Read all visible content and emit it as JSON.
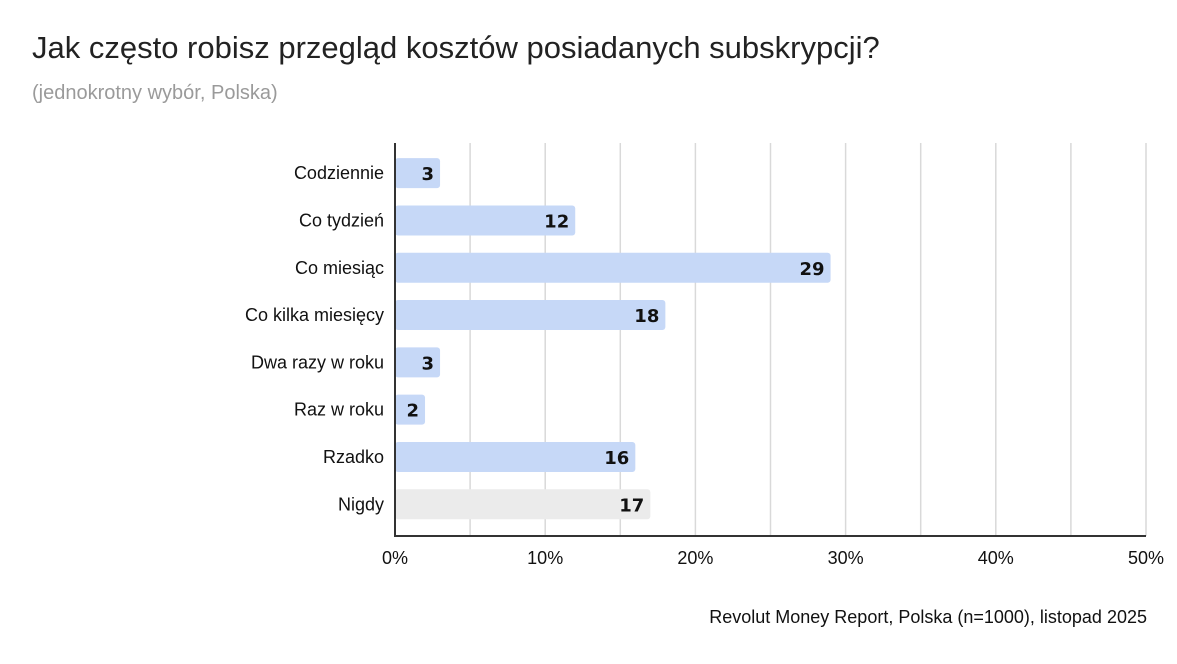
{
  "chart_data": {
    "type": "bar",
    "orientation": "horizontal",
    "title": "Jak często robisz przegląd kosztów posiadanych subskrypcji?",
    "subtitle": "(jednokrotny wybór, Polska)",
    "categories": [
      "Codziennie",
      "Co tydzień",
      "Co miesiąc",
      "Co kilka miesięcy",
      "Dwa razy w roku",
      "Raz w roku",
      "Rzadko",
      "Nigdy"
    ],
    "values": [
      3,
      12,
      29,
      18,
      3,
      2,
      16,
      17
    ],
    "data_labels": [
      "3",
      "12",
      "29",
      "18",
      "3",
      "2",
      "16",
      "17"
    ],
    "bar_colors": [
      "#c6d8f7",
      "#c6d8f7",
      "#c6d8f7",
      "#c6d8f7",
      "#c6d8f7",
      "#c6d8f7",
      "#c6d8f7",
      "#ebebeb"
    ],
    "xlim": [
      0,
      50
    ],
    "x_ticks": [
      "0%",
      "10%",
      "20%",
      "30%",
      "40%",
      "50%"
    ],
    "x_tick_values": [
      0,
      10,
      20,
      30,
      40,
      50
    ],
    "grid": true,
    "grid_step": 5,
    "xlabel": "",
    "ylabel": "",
    "source": "Revolut Money Report, Polska (n=1000), listopad 2025"
  }
}
